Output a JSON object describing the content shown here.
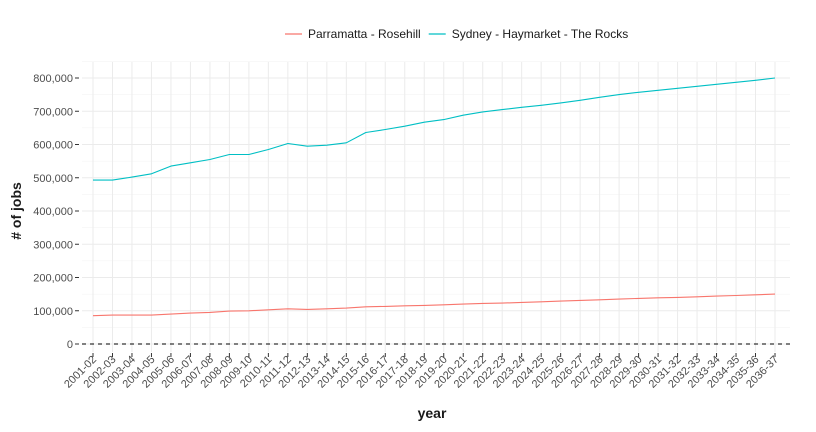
{
  "chart_data": {
    "type": "line",
    "xlabel": "year",
    "ylabel": "# of jobs",
    "ylim": [
      0,
      850000
    ],
    "yticks": [
      0,
      100000,
      200000,
      300000,
      400000,
      500000,
      600000,
      700000,
      800000
    ],
    "ytick_labels": [
      "0",
      "100,000",
      "200,000",
      "300,000",
      "400,000",
      "500,000",
      "600,000",
      "700,000",
      "800,000"
    ],
    "grid": true,
    "legend_position": "top",
    "reference_line": {
      "y": 0,
      "style": "dashed"
    },
    "categories": [
      "2001-02",
      "2002-03",
      "2003-04",
      "2004-05",
      "2005-06",
      "2006-07",
      "2007-08",
      "2008-09",
      "2009-10",
      "2010-11",
      "2011-12",
      "2012-13",
      "2013-14",
      "2014-15",
      "2015-16",
      "2016-17",
      "2017-18",
      "2018-19",
      "2019-20",
      "2020-21",
      "2021-22",
      "2022-23",
      "2023-24",
      "2024-25",
      "2025-26",
      "2026-27",
      "2027-28",
      "2028-29",
      "2029-30",
      "2030-31",
      "2031-32",
      "2032-33",
      "2033-34",
      "2034-35",
      "2035-36",
      "2036-37"
    ],
    "series": [
      {
        "name": "Parramatta - Rosehill",
        "color": "#F8766D",
        "values": [
          85000,
          87000,
          87000,
          87000,
          90000,
          93000,
          95000,
          99000,
          100000,
          103000,
          106000,
          104000,
          106000,
          108000,
          112000,
          113000,
          115000,
          116000,
          118000,
          120000,
          122000,
          123000,
          125000,
          127000,
          129000,
          131000,
          133000,
          135000,
          137000,
          139000,
          140000,
          142000,
          144000,
          146000,
          148000,
          150000
        ]
      },
      {
        "name": "Sydney - Haymarket - The Rocks",
        "color": "#00BFC4",
        "values": [
          493000,
          493000,
          502000,
          512000,
          535000,
          545000,
          555000,
          570000,
          570000,
          585000,
          603000,
          595000,
          598000,
          605000,
          636000,
          645000,
          655000,
          667000,
          675000,
          688000,
          698000,
          705000,
          712000,
          718000,
          725000,
          733000,
          742000,
          750000,
          757000,
          763000,
          769000,
          775000,
          781000,
          787000,
          793000,
          800000
        ]
      }
    ]
  }
}
